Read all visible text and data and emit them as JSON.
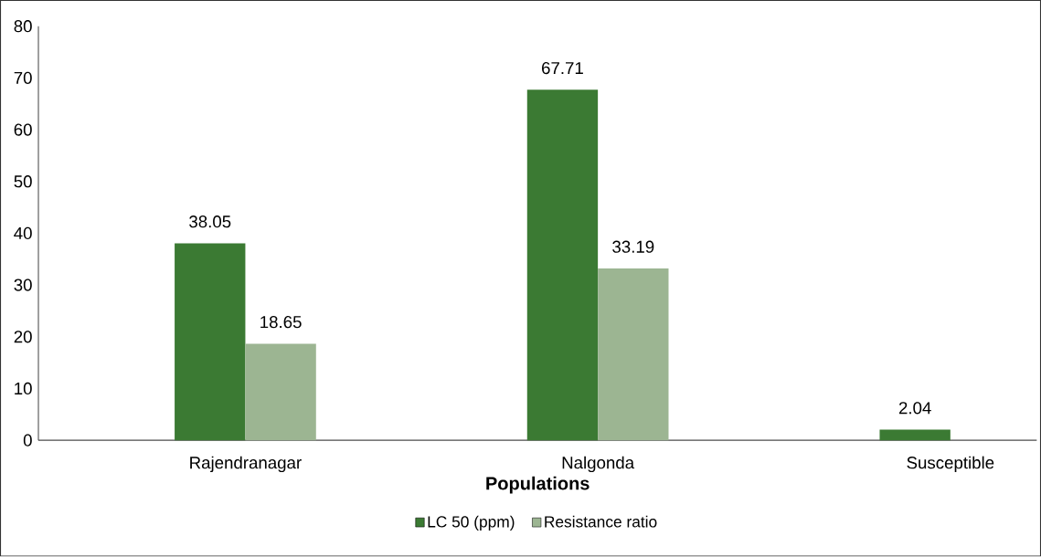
{
  "chart_data": {
    "type": "bar",
    "xlabel": "Populations",
    "categories": [
      "Rajendranagar",
      "Nalgonda",
      "Susceptible"
    ],
    "series": [
      {
        "name": "LC 50 (ppm)",
        "color": "#3b7a33",
        "values": [
          38.05,
          67.71,
          2.04
        ]
      },
      {
        "name": "Resistance ratio",
        "color": "#9cb592",
        "values": [
          18.65,
          33.19,
          null
        ]
      }
    ],
    "ylim": [
      0,
      80
    ],
    "yticks": [
      0,
      10,
      20,
      30,
      40,
      50,
      60,
      70,
      80
    ],
    "grid": false,
    "legend": "bottom",
    "data_labels": true
  }
}
